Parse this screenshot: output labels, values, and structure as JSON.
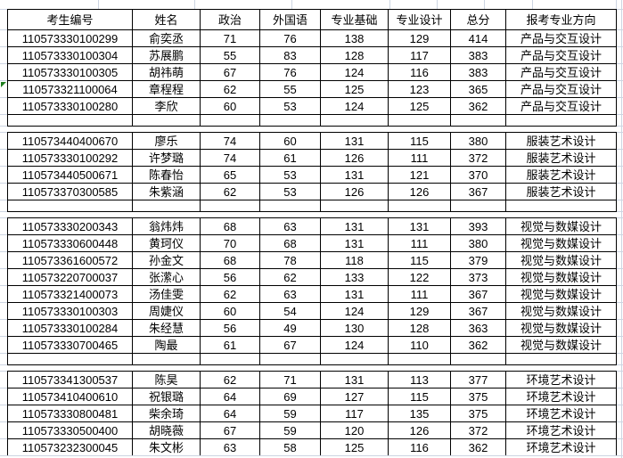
{
  "table": {
    "headers": [
      "考生编号",
      "姓名",
      "政治",
      "外国语",
      "专业基础",
      "专业设计",
      "总分",
      "报考专业方向"
    ],
    "groups": [
      {
        "major": "产品与交互设计",
        "rows": [
          [
            "110573330100299",
            "俞奕丞",
            "71",
            "76",
            "138",
            "129",
            "414"
          ],
          [
            "110573330100304",
            "苏展鹏",
            "55",
            "83",
            "128",
            "117",
            "383"
          ],
          [
            "110573330100305",
            "胡祎萌",
            "67",
            "76",
            "124",
            "116",
            "383"
          ],
          [
            "110573321100064",
            "章程程",
            "62",
            "55",
            "125",
            "123",
            "365"
          ],
          [
            "110573330100280",
            "李欣",
            "60",
            "53",
            "124",
            "125",
            "362"
          ]
        ]
      },
      {
        "major": "服装艺术设计",
        "rows": [
          [
            "110573440400670",
            "廖乐",
            "74",
            "60",
            "131",
            "115",
            "380"
          ],
          [
            "110573330100292",
            "许梦璐",
            "74",
            "61",
            "126",
            "111",
            "372"
          ],
          [
            "110573440500671",
            "陈春怡",
            "65",
            "53",
            "131",
            "121",
            "370"
          ],
          [
            "110573370300585",
            "朱紫涵",
            "62",
            "53",
            "126",
            "126",
            "367"
          ]
        ]
      },
      {
        "major": "视觉与数媒设计",
        "rows": [
          [
            "110573330200343",
            "翁炜炜",
            "68",
            "63",
            "131",
            "131",
            "393"
          ],
          [
            "110573330600448",
            "黄珂仪",
            "70",
            "68",
            "131",
            "111",
            "380"
          ],
          [
            "110573361600572",
            "孙金文",
            "68",
            "78",
            "118",
            "115",
            "379"
          ],
          [
            "110573220700037",
            "张潆心",
            "56",
            "62",
            "133",
            "122",
            "373"
          ],
          [
            "110573321400073",
            "汤佳雯",
            "62",
            "63",
            "131",
            "111",
            "367"
          ],
          [
            "110573330100303",
            "周婕仪",
            "60",
            "54",
            "124",
            "129",
            "367"
          ],
          [
            "110573330100284",
            "朱经慧",
            "56",
            "49",
            "130",
            "128",
            "363"
          ],
          [
            "110573330700465",
            "陶最",
            "61",
            "67",
            "124",
            "110",
            "362"
          ]
        ]
      },
      {
        "major": "环境艺术设计",
        "rows": [
          [
            "110573341300537",
            "陈昊",
            "62",
            "71",
            "131",
            "113",
            "377"
          ],
          [
            "110573410400610",
            "祝银璐",
            "64",
            "69",
            "127",
            "115",
            "375"
          ],
          [
            "110573330800481",
            "柴余琦",
            "64",
            "59",
            "117",
            "135",
            "375"
          ],
          [
            "110573330500400",
            "胡晓薇",
            "67",
            "59",
            "120",
            "126",
            "372"
          ],
          [
            "110573232300045",
            "朱文彬",
            "63",
            "58",
            "125",
            "116",
            "362"
          ]
        ]
      }
    ]
  },
  "indicator": {
    "type": "number-stored-as-text-triangle",
    "row_exam_id": "110573321100064",
    "color": "#1e7e1e"
  },
  "colors": {
    "table_border": "#000000",
    "gridline": "#cdd5e2",
    "background": "#ffffff",
    "text": "#000000"
  }
}
